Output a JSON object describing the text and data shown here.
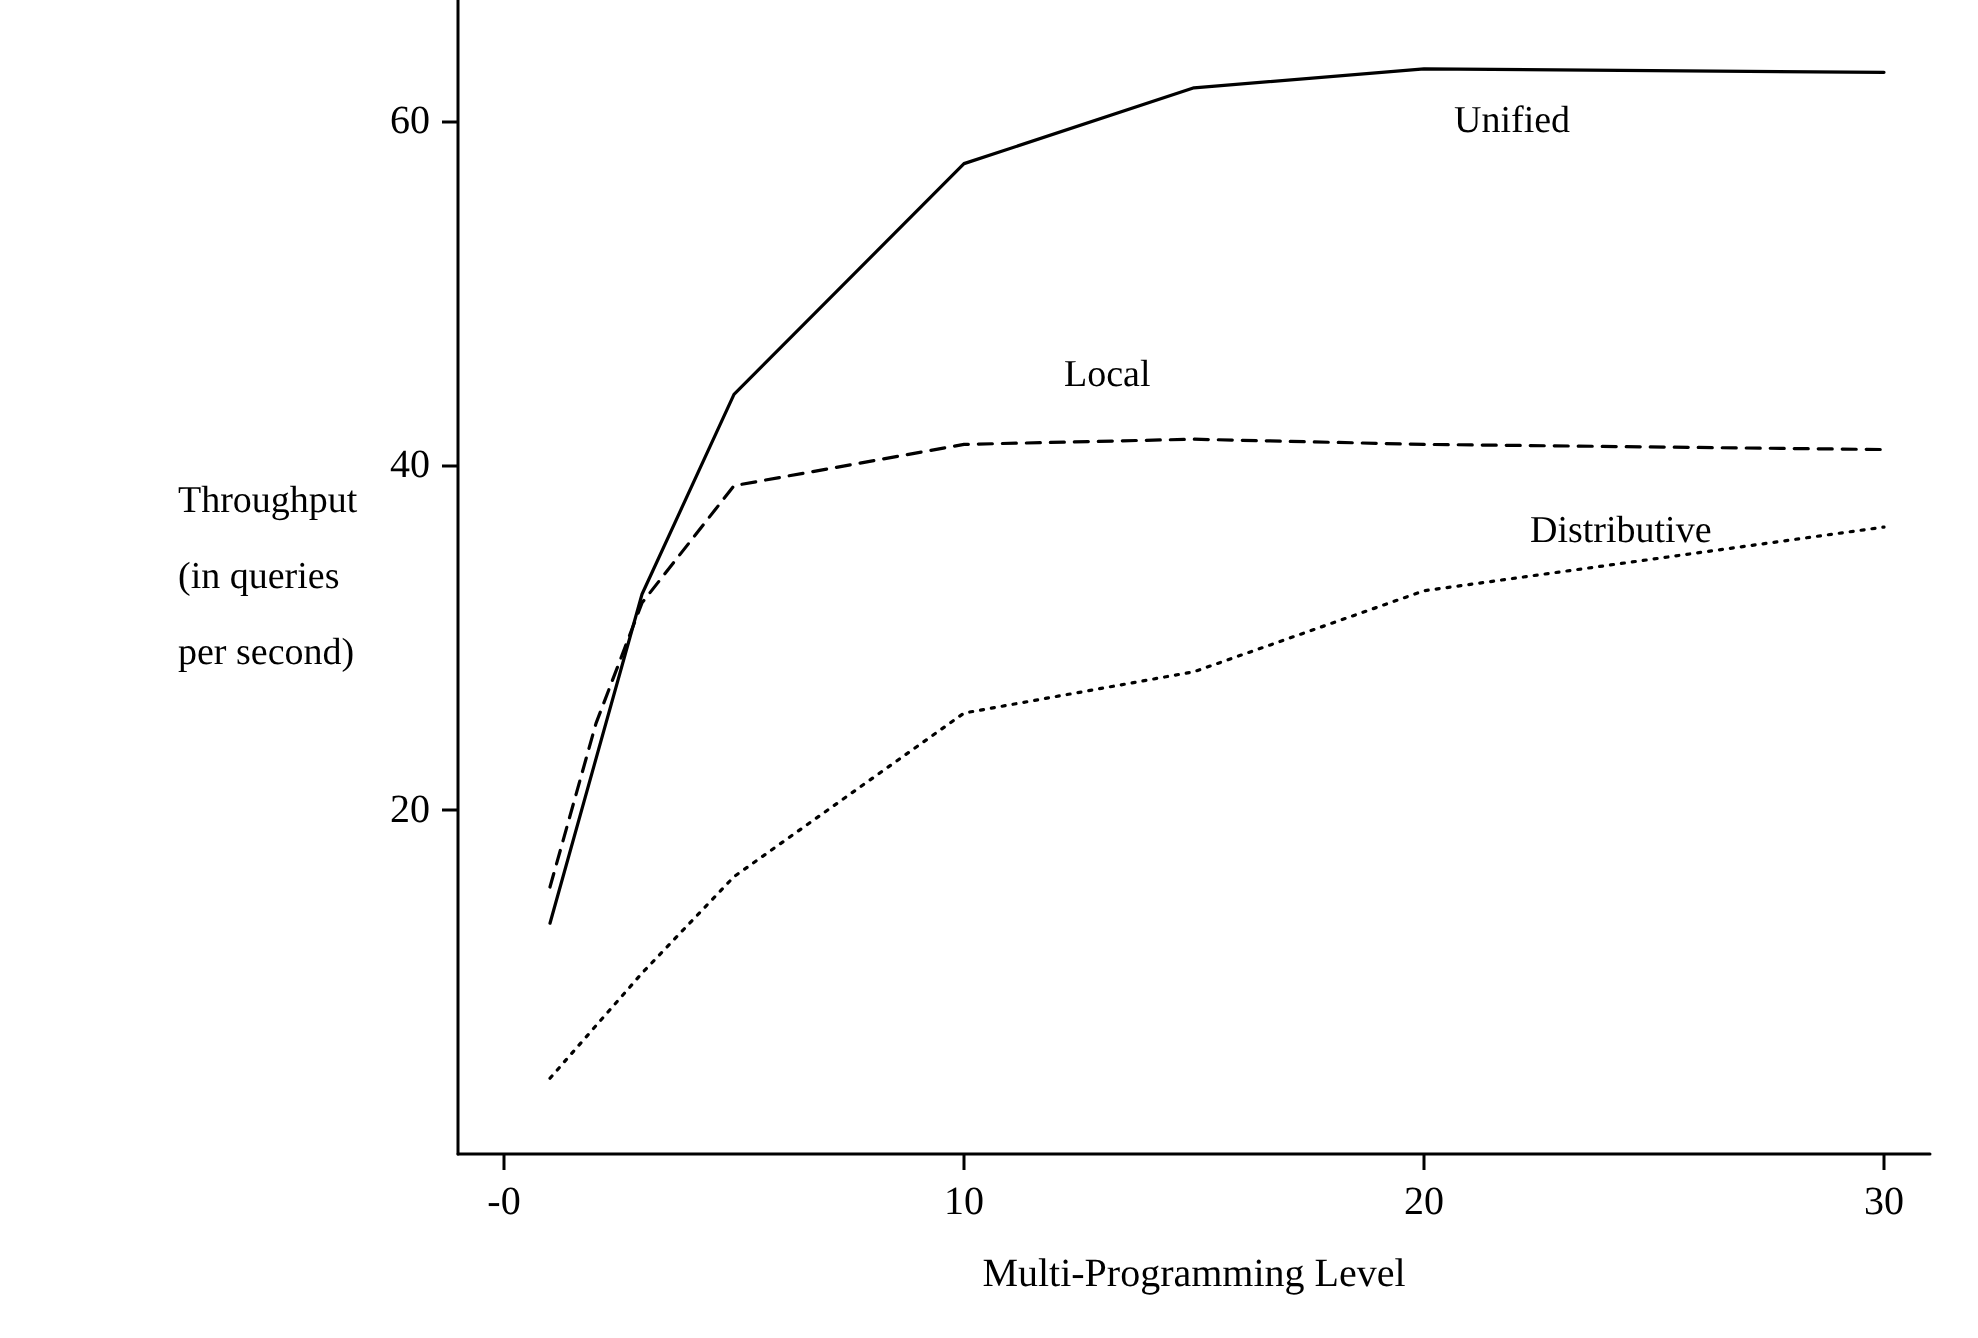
{
  "chart_data": {
    "type": "line",
    "xlabel": "Multi-Programming Level",
    "ylabel": "Throughput\n(in queries\nper second)",
    "xlim": [
      -1,
      31
    ],
    "ylim": [
      0,
      67
    ],
    "xticks": [
      {
        "value": 0,
        "label": "-0"
      },
      10,
      20,
      30
    ],
    "yticks": [
      20,
      40,
      60
    ],
    "grid": false,
    "marker": "none",
    "series": [
      {
        "name": "Unified",
        "color": "#000000",
        "line_style": "solid",
        "x": [
          1,
          3,
          5,
          10,
          15,
          20,
          30
        ],
        "values": [
          13.4,
          32.5,
          44.1,
          57.5,
          61.9,
          63,
          62.8
        ]
      },
      {
        "name": "Local",
        "color": "#000000",
        "line_style": "dashed",
        "x": [
          1,
          2,
          3,
          5,
          10,
          15,
          20,
          30
        ],
        "values": [
          15.5,
          25,
          32,
          38.8,
          41.2,
          41.5,
          41.2,
          40.9
        ]
      },
      {
        "name": "Distributive",
        "color": "#000000",
        "line_style": "dotted",
        "x": [
          1,
          3,
          5,
          10,
          15,
          20,
          30
        ],
        "values": [
          4.4,
          10.5,
          16.1,
          25.6,
          28,
          32.7,
          36.4
        ]
      }
    ]
  }
}
